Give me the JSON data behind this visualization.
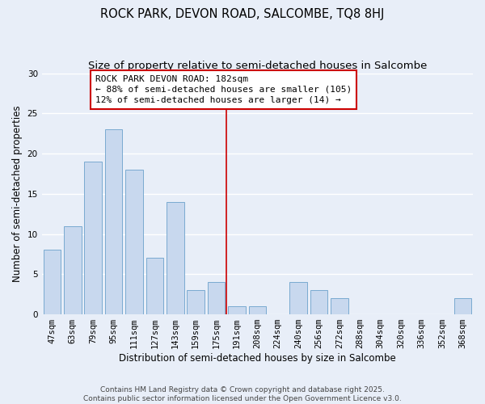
{
  "title": "ROCK PARK, DEVON ROAD, SALCOMBE, TQ8 8HJ",
  "subtitle": "Size of property relative to semi-detached houses in Salcombe",
  "xlabel": "Distribution of semi-detached houses by size in Salcombe",
  "ylabel": "Number of semi-detached properties",
  "bar_labels": [
    "47sqm",
    "63sqm",
    "79sqm",
    "95sqm",
    "111sqm",
    "127sqm",
    "143sqm",
    "159sqm",
    "175sqm",
    "191sqm",
    "208sqm",
    "224sqm",
    "240sqm",
    "256sqm",
    "272sqm",
    "288sqm",
    "304sqm",
    "320sqm",
    "336sqm",
    "352sqm",
    "368sqm"
  ],
  "bar_values": [
    8,
    11,
    19,
    23,
    18,
    7,
    14,
    3,
    4,
    1,
    1,
    0,
    4,
    3,
    2,
    0,
    0,
    0,
    0,
    0,
    2
  ],
  "bar_color": "#c8d8ee",
  "bar_edge_color": "#7aaad0",
  "background_color": "#e8eef8",
  "grid_color": "#ffffff",
  "vline_x": 8.5,
  "vline_color": "#cc0000",
  "annotation_title": "ROCK PARK DEVON ROAD: 182sqm",
  "annotation_line1": "← 88% of semi-detached houses are smaller (105)",
  "annotation_line2": "12% of semi-detached houses are larger (14) →",
  "annotation_box_color": "white",
  "annotation_box_edge": "#cc0000",
  "ylim": [
    0,
    30
  ],
  "yticks": [
    0,
    5,
    10,
    15,
    20,
    25,
    30
  ],
  "footer_line1": "Contains HM Land Registry data © Crown copyright and database right 2025.",
  "footer_line2": "Contains public sector information licensed under the Open Government Licence v3.0.",
  "title_fontsize": 10.5,
  "subtitle_fontsize": 9.5,
  "axis_label_fontsize": 8.5,
  "tick_fontsize": 7.5,
  "annotation_fontsize": 8,
  "footer_fontsize": 6.5
}
